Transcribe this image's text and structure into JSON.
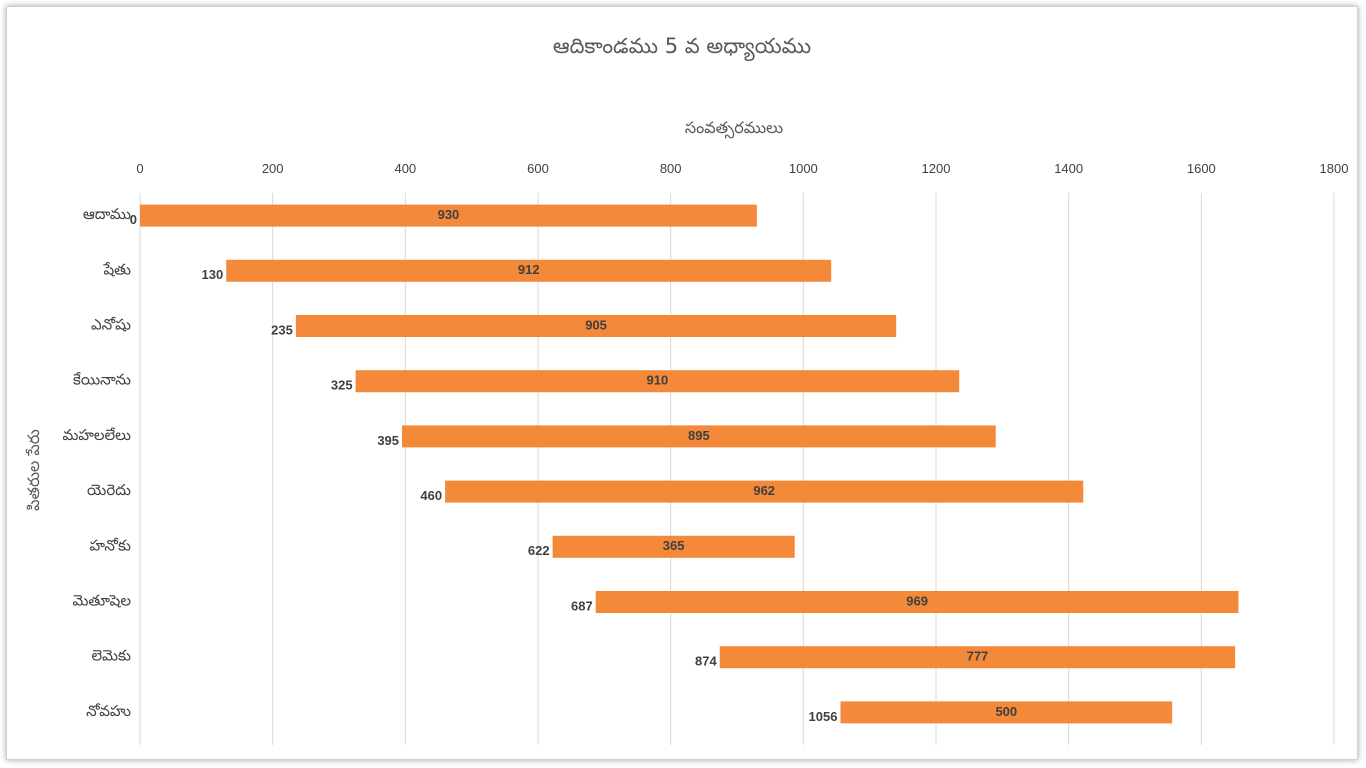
{
  "chart_data": {
    "type": "bar",
    "orientation": "horizontal-stacked-floating",
    "title": "ఆదికాండము 5 వ అధ్యాయము",
    "xlabel": "సంవత్సరములు",
    "ylabel": "పితరుల పేరు",
    "xlim": [
      0,
      1800
    ],
    "xticks": [
      "0",
      "200",
      "400",
      "600",
      "800",
      "1000",
      "1200",
      "1400",
      "1600",
      "1800"
    ],
    "x_axis_position": "top",
    "grid": true,
    "legend": "none",
    "bar_color": "#f4893a",
    "categories": [
      "ఆదాము",
      "షేతు",
      "ఎనోషు",
      "కేయినాను",
      "మహలలేలు",
      "యెరెదు",
      "హనోకు",
      "మెతూషెల",
      "లెమెకు",
      "నోవహు"
    ],
    "series": [
      {
        "values": [
          0,
          130,
          235,
          325,
          395,
          460,
          622,
          687,
          874,
          1056
        ],
        "visible": false
      },
      {
        "values": [
          930,
          912,
          905,
          910,
          895,
          962,
          365,
          969,
          777,
          500
        ],
        "visible": true
      }
    ],
    "data_labels": {
      "start": [
        "0",
        "130",
        "235",
        "325",
        "395",
        "460",
        "622",
        "687",
        "874",
        "1056"
      ],
      "length": [
        "930",
        "912",
        "905",
        "910",
        "895",
        "962",
        "365",
        "969",
        "777",
        "500"
      ]
    }
  }
}
